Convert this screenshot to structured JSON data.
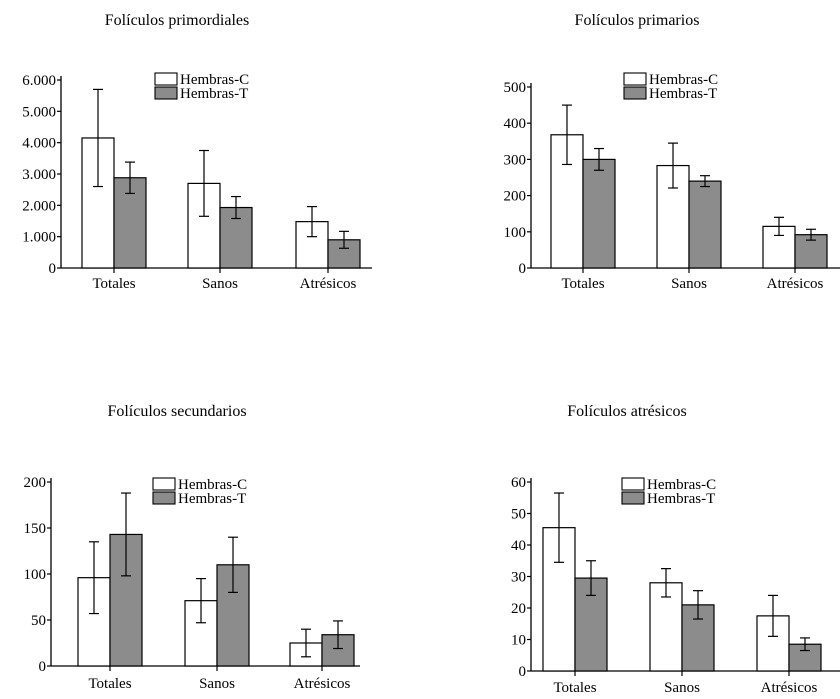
{
  "chart_data": [
    {
      "type": "bar",
      "title": "Folículos primordiales",
      "categories": [
        "Totales",
        "Sanos",
        "Atrésicos"
      ],
      "series": [
        {
          "name": "Hembras-C",
          "values": [
            4150,
            2700,
            1480
          ],
          "errors": [
            1550,
            1050,
            480
          ],
          "color": "#ffffff"
        },
        {
          "name": "Hembras-T",
          "values": [
            2880,
            1930,
            900
          ],
          "errors": [
            500,
            350,
            270
          ],
          "color": "#8c8c8c"
        }
      ],
      "yticks": [
        "0",
        "1.000",
        "2.000",
        "3.000",
        "4.000",
        "5.000",
        "6.000"
      ],
      "ylim": [
        0,
        6000
      ],
      "legend": "top-center"
    },
    {
      "type": "bar",
      "title": "Folículos primarios",
      "categories": [
        "Totales",
        "Sanos",
        "Atrésicos"
      ],
      "series": [
        {
          "name": "Hembras-C",
          "values": [
            368,
            283,
            115
          ],
          "errors": [
            82,
            62,
            25
          ],
          "color": "#ffffff"
        },
        {
          "name": "Hembras-T",
          "values": [
            300,
            240,
            92
          ],
          "errors": [
            30,
            15,
            15
          ],
          "color": "#8c8c8c"
        }
      ],
      "yticks": [
        "0",
        "100",
        "200",
        "300",
        "400",
        "500"
      ],
      "ylim": [
        0,
        500
      ],
      "legend": "top-center"
    },
    {
      "type": "bar",
      "title": "Folículos secundarios",
      "categories": [
        "Totales",
        "Sanos",
        "Atrésicos"
      ],
      "series": [
        {
          "name": "Hembras-C",
          "values": [
            96,
            71,
            25
          ],
          "errors": [
            39,
            24,
            15
          ],
          "color": "#ffffff"
        },
        {
          "name": "Hembras-T",
          "values": [
            143,
            110,
            34
          ],
          "errors": [
            45,
            30,
            15
          ],
          "color": "#8c8c8c"
        }
      ],
      "yticks": [
        "0",
        "50",
        "100",
        "150",
        "200"
      ],
      "ylim": [
        0,
        200
      ],
      "legend": "top-center"
    },
    {
      "type": "bar",
      "title": "Folículos atrésicos",
      "categories": [
        "Totales",
        "Sanos",
        "Atrésicos"
      ],
      "series": [
        {
          "name": "Hembras-C",
          "values": [
            45.5,
            28,
            17.5
          ],
          "errors": [
            11,
            4.5,
            6.5
          ],
          "color": "#ffffff"
        },
        {
          "name": "Hembras-T",
          "values": [
            29.5,
            21,
            8.5
          ],
          "errors": [
            5.5,
            4.5,
            2
          ],
          "color": "#8c8c8c"
        }
      ],
      "yticks": [
        "0",
        "10",
        "20",
        "30",
        "40",
        "50",
        "60"
      ],
      "ylim": [
        0,
        60
      ],
      "legend": "top-center"
    }
  ]
}
